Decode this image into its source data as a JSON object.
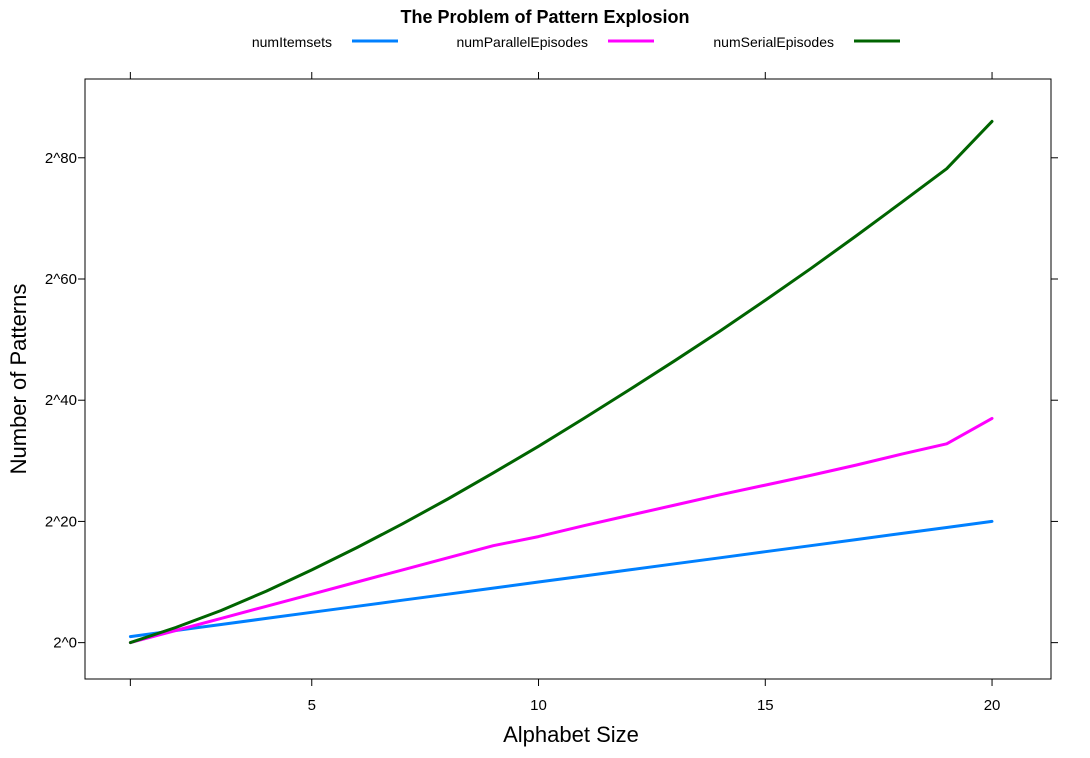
{
  "chart_data": {
    "type": "line",
    "title": "The Problem of Pattern Explosion",
    "xlabel": "Alphabet Size",
    "ylabel": "Number of Patterns",
    "xlim": [
      0,
      21.3
    ],
    "ylim": [
      -6,
      93
    ],
    "y_scale": "log2",
    "x_ticks": [
      5,
      10,
      15,
      20
    ],
    "x_tick_labels": [
      "5",
      "10",
      "15",
      "20"
    ],
    "y_ticks": [
      0,
      20,
      40,
      60,
      80
    ],
    "y_tick_labels": [
      "2^0",
      "2^20",
      "2^40",
      "2^60",
      "2^80"
    ],
    "grid": false,
    "legend_position": "top",
    "series": [
      {
        "name": "numItemsets",
        "color": "#0080ff",
        "x": [
          1,
          2,
          3,
          4,
          5,
          6,
          7,
          8,
          9,
          10,
          11,
          12,
          13,
          14,
          15,
          16,
          17,
          18,
          19,
          20
        ],
        "y": [
          1,
          2,
          3,
          4,
          5,
          6,
          7,
          8,
          9,
          10,
          11,
          12,
          13,
          14,
          15,
          16,
          17,
          18,
          19,
          20
        ]
      },
      {
        "name": "numParallelEpisodes",
        "color": "#ff00ff",
        "x": [
          1,
          2,
          3,
          4,
          5,
          6,
          7,
          8,
          9,
          10,
          11,
          12,
          13,
          14,
          15,
          16,
          17,
          18,
          19,
          20
        ],
        "y": [
          0,
          2,
          4,
          6,
          8,
          10,
          12,
          14,
          16,
          17.5,
          19.3,
          21,
          22.7,
          24.4,
          26,
          27.6,
          29.3,
          31.1,
          32.8,
          37
        ]
      },
      {
        "name": "numSerialEpisodes",
        "color": "#006400",
        "x": [
          1,
          2,
          3,
          4,
          5,
          6,
          7,
          8,
          9,
          10,
          11,
          12,
          13,
          14,
          15,
          16,
          17,
          18,
          19,
          20
        ],
        "y": [
          0,
          2.5,
          5.3,
          8.5,
          12,
          15.7,
          19.6,
          23.7,
          28,
          32.4,
          37,
          41.7,
          46.5,
          51.4,
          56.5,
          61.7,
          67.1,
          72.6,
          78.2,
          86
        ]
      }
    ]
  }
}
